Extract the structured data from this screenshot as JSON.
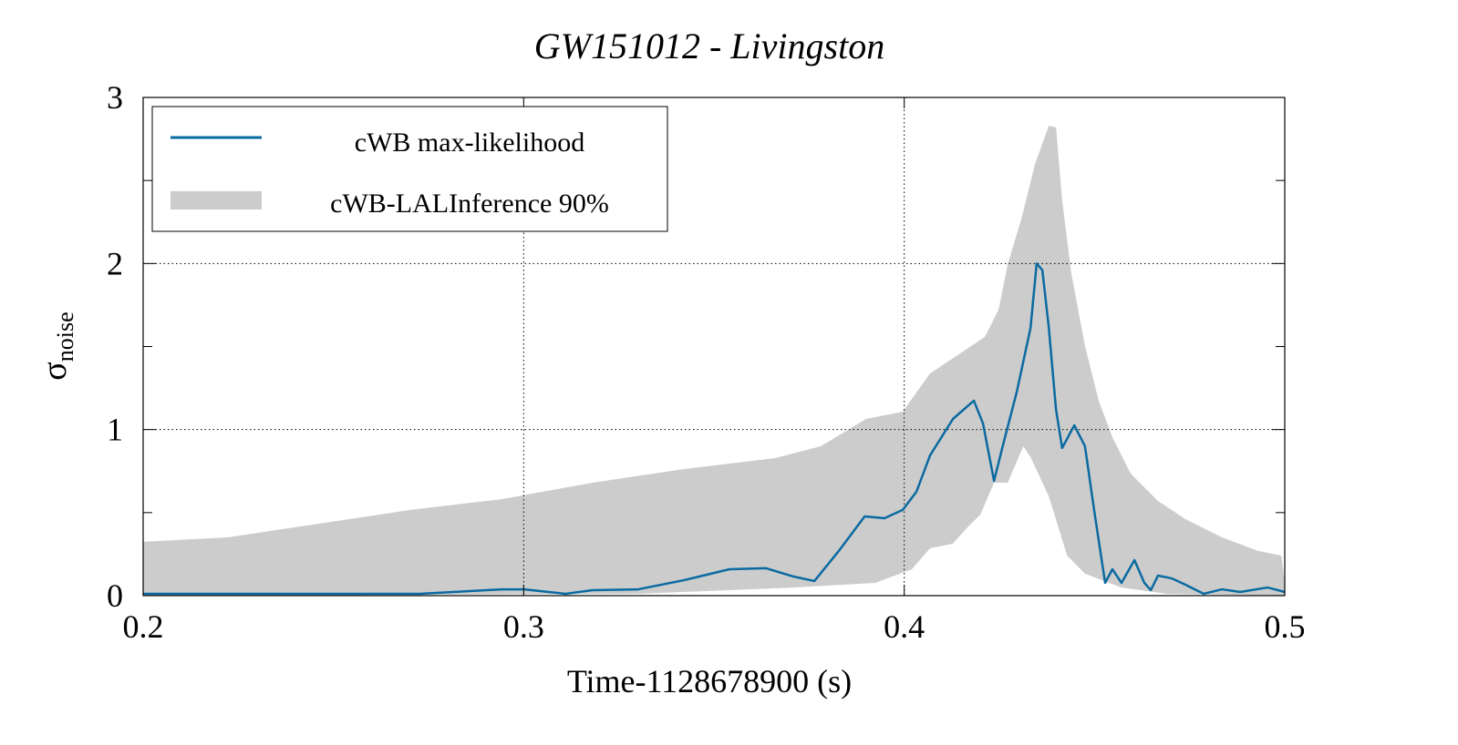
{
  "chart_data": {
    "type": "line",
    "title": "GW151012 - Livingston",
    "xlabel": "Time-1128678900 (s)",
    "ylabel_main": "σ",
    "ylabel_sub": "noise",
    "xlim": [
      0.2,
      0.5
    ],
    "ylim": [
      0,
      3
    ],
    "xticks": [
      0.2,
      0.3,
      0.4,
      0.5
    ],
    "xtick_labels": [
      "0.2",
      "0.3",
      "0.4",
      "0.5"
    ],
    "yticks": [
      0,
      1,
      2,
      3
    ],
    "ytick_labels": [
      "0",
      "1",
      "2",
      "3"
    ],
    "grid": true,
    "legend_position": "top-left",
    "colors": {
      "line": "#0a6aa1",
      "band": "#cccccc"
    },
    "series": [
      {
        "name": "cWB max-likelihood",
        "kind": "line",
        "x": [
          0.2,
          0.2343,
          0.2726,
          0.2942,
          0.3002,
          0.311,
          0.3181,
          0.3301,
          0.3421,
          0.3541,
          0.3637,
          0.3709,
          0.3764,
          0.3828,
          0.3896,
          0.3948,
          0.3996,
          0.4032,
          0.4068,
          0.4128,
          0.4183,
          0.4207,
          0.4236,
          0.426,
          0.4296,
          0.4332,
          0.4348,
          0.4363,
          0.438,
          0.4399,
          0.4415,
          0.4447,
          0.4475,
          0.4499,
          0.4528,
          0.4547,
          0.4571,
          0.4605,
          0.4631,
          0.4648,
          0.4667,
          0.4703,
          0.4739,
          0.4787,
          0.4835,
          0.4883,
          0.4955,
          0.5
        ],
        "y": [
          0.011,
          0.011,
          0.011,
          0.038,
          0.038,
          0.011,
          0.033,
          0.038,
          0.093,
          0.159,
          0.165,
          0.115,
          0.088,
          0.269,
          0.477,
          0.466,
          0.516,
          0.625,
          0.845,
          1.064,
          1.174,
          1.037,
          0.691,
          0.911,
          1.229,
          1.613,
          2.0,
          1.96,
          1.613,
          1.119,
          0.889,
          1.026,
          0.9,
          0.516,
          0.077,
          0.159,
          0.077,
          0.214,
          0.077,
          0.033,
          0.121,
          0.104,
          0.066,
          0.011,
          0.038,
          0.022,
          0.049,
          0.022
        ]
      },
      {
        "name": "cWB-LALInference 90%",
        "kind": "band",
        "upper_x": [
          0.2,
          0.2223,
          0.2462,
          0.2702,
          0.2942,
          0.3181,
          0.3421,
          0.3661,
          0.3781,
          0.39,
          0.3996,
          0.4068,
          0.414,
          0.4212,
          0.4248,
          0.4272,
          0.4308,
          0.4344,
          0.438,
          0.4399,
          0.4415,
          0.4439,
          0.4475,
          0.4511,
          0.4547,
          0.4595,
          0.4667,
          0.4739,
          0.4835,
          0.4931,
          0.4991,
          0.5
        ],
        "upper_y": [
          0.324,
          0.351,
          0.433,
          0.516,
          0.581,
          0.68,
          0.762,
          0.828,
          0.9,
          1.064,
          1.108,
          1.338,
          1.448,
          1.558,
          1.722,
          1.996,
          2.27,
          2.6,
          2.83,
          2.819,
          2.381,
          1.942,
          1.503,
          1.174,
          0.954,
          0.735,
          0.57,
          0.461,
          0.351,
          0.269,
          0.241,
          0.077
        ],
        "lower_x": [
          0.2,
          0.3301,
          0.3709,
          0.3924,
          0.402,
          0.4068,
          0.4128,
          0.4164,
          0.42,
          0.4236,
          0.4272,
          0.4313,
          0.4332,
          0.438,
          0.4428,
          0.4475,
          0.4571,
          0.4691,
          0.5
        ],
        "lower_y": [
          0,
          0.011,
          0.049,
          0.077,
          0.159,
          0.285,
          0.313,
          0.406,
          0.488,
          0.68,
          0.68,
          0.9,
          0.834,
          0.598,
          0.241,
          0.132,
          0.049,
          0.011,
          0
        ]
      }
    ]
  }
}
